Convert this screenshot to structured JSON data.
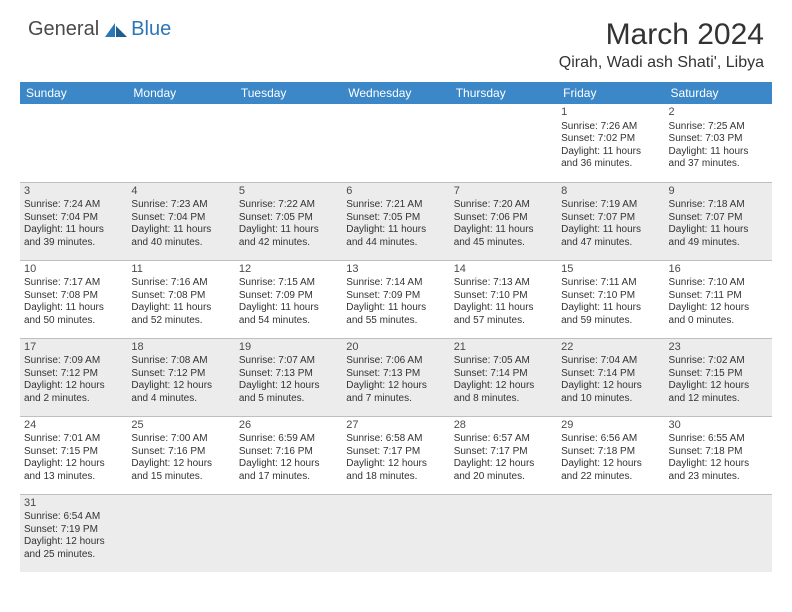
{
  "logo": {
    "general": "General",
    "blue": "Blue"
  },
  "title": "March 2024",
  "location": "Qirah, Wadi ash Shati', Libya",
  "colors": {
    "header_bg": "#3b87c8",
    "header_text": "#ffffff",
    "alt_row_bg": "#ececec",
    "border": "#bfbfbf",
    "text": "#333333",
    "logo_blue": "#2a77b8",
    "logo_gray": "#4a4a4a"
  },
  "weekdays": [
    "Sunday",
    "Monday",
    "Tuesday",
    "Wednesday",
    "Thursday",
    "Friday",
    "Saturday"
  ],
  "weeks": [
    {
      "alt": false,
      "days": [
        null,
        null,
        null,
        null,
        null,
        {
          "n": "1",
          "sr": "Sunrise: 7:26 AM",
          "ss": "Sunset: 7:02 PM",
          "d1": "Daylight: 11 hours",
          "d2": "and 36 minutes."
        },
        {
          "n": "2",
          "sr": "Sunrise: 7:25 AM",
          "ss": "Sunset: 7:03 PM",
          "d1": "Daylight: 11 hours",
          "d2": "and 37 minutes."
        }
      ]
    },
    {
      "alt": true,
      "days": [
        {
          "n": "3",
          "sr": "Sunrise: 7:24 AM",
          "ss": "Sunset: 7:04 PM",
          "d1": "Daylight: 11 hours",
          "d2": "and 39 minutes."
        },
        {
          "n": "4",
          "sr": "Sunrise: 7:23 AM",
          "ss": "Sunset: 7:04 PM",
          "d1": "Daylight: 11 hours",
          "d2": "and 40 minutes."
        },
        {
          "n": "5",
          "sr": "Sunrise: 7:22 AM",
          "ss": "Sunset: 7:05 PM",
          "d1": "Daylight: 11 hours",
          "d2": "and 42 minutes."
        },
        {
          "n": "6",
          "sr": "Sunrise: 7:21 AM",
          "ss": "Sunset: 7:05 PM",
          "d1": "Daylight: 11 hours",
          "d2": "and 44 minutes."
        },
        {
          "n": "7",
          "sr": "Sunrise: 7:20 AM",
          "ss": "Sunset: 7:06 PM",
          "d1": "Daylight: 11 hours",
          "d2": "and 45 minutes."
        },
        {
          "n": "8",
          "sr": "Sunrise: 7:19 AM",
          "ss": "Sunset: 7:07 PM",
          "d1": "Daylight: 11 hours",
          "d2": "and 47 minutes."
        },
        {
          "n": "9",
          "sr": "Sunrise: 7:18 AM",
          "ss": "Sunset: 7:07 PM",
          "d1": "Daylight: 11 hours",
          "d2": "and 49 minutes."
        }
      ]
    },
    {
      "alt": false,
      "days": [
        {
          "n": "10",
          "sr": "Sunrise: 7:17 AM",
          "ss": "Sunset: 7:08 PM",
          "d1": "Daylight: 11 hours",
          "d2": "and 50 minutes."
        },
        {
          "n": "11",
          "sr": "Sunrise: 7:16 AM",
          "ss": "Sunset: 7:08 PM",
          "d1": "Daylight: 11 hours",
          "d2": "and 52 minutes."
        },
        {
          "n": "12",
          "sr": "Sunrise: 7:15 AM",
          "ss": "Sunset: 7:09 PM",
          "d1": "Daylight: 11 hours",
          "d2": "and 54 minutes."
        },
        {
          "n": "13",
          "sr": "Sunrise: 7:14 AM",
          "ss": "Sunset: 7:09 PM",
          "d1": "Daylight: 11 hours",
          "d2": "and 55 minutes."
        },
        {
          "n": "14",
          "sr": "Sunrise: 7:13 AM",
          "ss": "Sunset: 7:10 PM",
          "d1": "Daylight: 11 hours",
          "d2": "and 57 minutes."
        },
        {
          "n": "15",
          "sr": "Sunrise: 7:11 AM",
          "ss": "Sunset: 7:10 PM",
          "d1": "Daylight: 11 hours",
          "d2": "and 59 minutes."
        },
        {
          "n": "16",
          "sr": "Sunrise: 7:10 AM",
          "ss": "Sunset: 7:11 PM",
          "d1": "Daylight: 12 hours",
          "d2": "and 0 minutes."
        }
      ]
    },
    {
      "alt": true,
      "days": [
        {
          "n": "17",
          "sr": "Sunrise: 7:09 AM",
          "ss": "Sunset: 7:12 PM",
          "d1": "Daylight: 12 hours",
          "d2": "and 2 minutes."
        },
        {
          "n": "18",
          "sr": "Sunrise: 7:08 AM",
          "ss": "Sunset: 7:12 PM",
          "d1": "Daylight: 12 hours",
          "d2": "and 4 minutes."
        },
        {
          "n": "19",
          "sr": "Sunrise: 7:07 AM",
          "ss": "Sunset: 7:13 PM",
          "d1": "Daylight: 12 hours",
          "d2": "and 5 minutes."
        },
        {
          "n": "20",
          "sr": "Sunrise: 7:06 AM",
          "ss": "Sunset: 7:13 PM",
          "d1": "Daylight: 12 hours",
          "d2": "and 7 minutes."
        },
        {
          "n": "21",
          "sr": "Sunrise: 7:05 AM",
          "ss": "Sunset: 7:14 PM",
          "d1": "Daylight: 12 hours",
          "d2": "and 8 minutes."
        },
        {
          "n": "22",
          "sr": "Sunrise: 7:04 AM",
          "ss": "Sunset: 7:14 PM",
          "d1": "Daylight: 12 hours",
          "d2": "and 10 minutes."
        },
        {
          "n": "23",
          "sr": "Sunrise: 7:02 AM",
          "ss": "Sunset: 7:15 PM",
          "d1": "Daylight: 12 hours",
          "d2": "and 12 minutes."
        }
      ]
    },
    {
      "alt": false,
      "days": [
        {
          "n": "24",
          "sr": "Sunrise: 7:01 AM",
          "ss": "Sunset: 7:15 PM",
          "d1": "Daylight: 12 hours",
          "d2": "and 13 minutes."
        },
        {
          "n": "25",
          "sr": "Sunrise: 7:00 AM",
          "ss": "Sunset: 7:16 PM",
          "d1": "Daylight: 12 hours",
          "d2": "and 15 minutes."
        },
        {
          "n": "26",
          "sr": "Sunrise: 6:59 AM",
          "ss": "Sunset: 7:16 PM",
          "d1": "Daylight: 12 hours",
          "d2": "and 17 minutes."
        },
        {
          "n": "27",
          "sr": "Sunrise: 6:58 AM",
          "ss": "Sunset: 7:17 PM",
          "d1": "Daylight: 12 hours",
          "d2": "and 18 minutes."
        },
        {
          "n": "28",
          "sr": "Sunrise: 6:57 AM",
          "ss": "Sunset: 7:17 PM",
          "d1": "Daylight: 12 hours",
          "d2": "and 20 minutes."
        },
        {
          "n": "29",
          "sr": "Sunrise: 6:56 AM",
          "ss": "Sunset: 7:18 PM",
          "d1": "Daylight: 12 hours",
          "d2": "and 22 minutes."
        },
        {
          "n": "30",
          "sr": "Sunrise: 6:55 AM",
          "ss": "Sunset: 7:18 PM",
          "d1": "Daylight: 12 hours",
          "d2": "and 23 minutes."
        }
      ]
    },
    {
      "alt": true,
      "days": [
        {
          "n": "31",
          "sr": "Sunrise: 6:54 AM",
          "ss": "Sunset: 7:19 PM",
          "d1": "Daylight: 12 hours",
          "d2": "and 25 minutes."
        },
        null,
        null,
        null,
        null,
        null,
        null
      ]
    }
  ]
}
